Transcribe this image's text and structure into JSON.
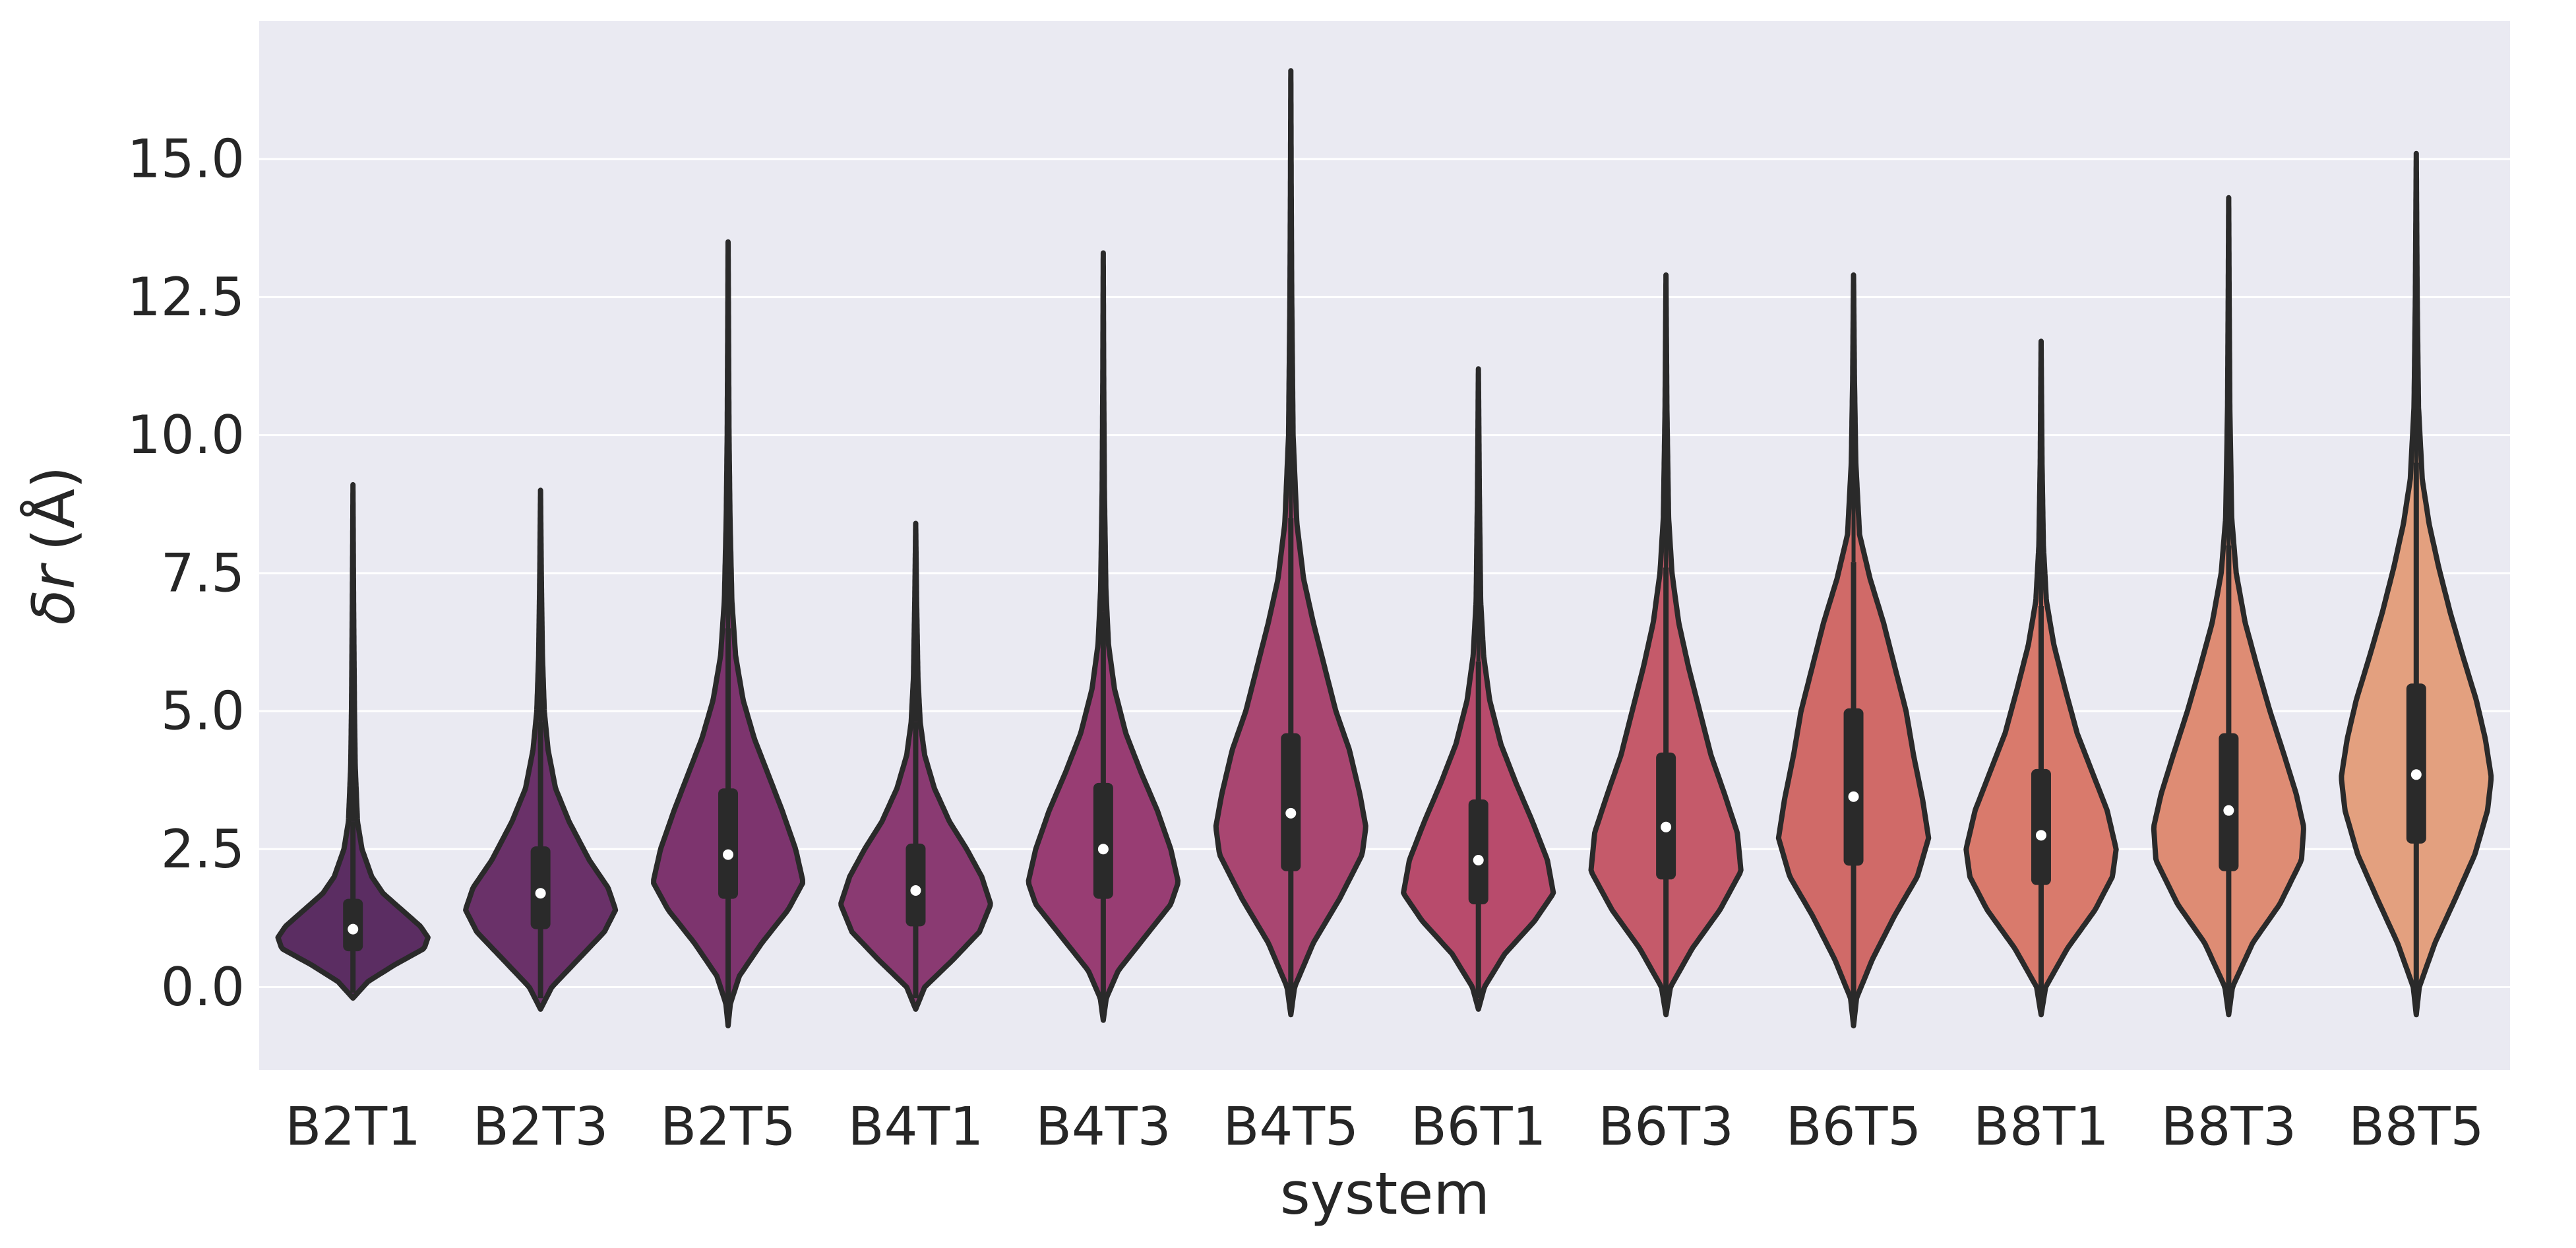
{
  "chart_data": {
    "type": "violin",
    "xlabel": "system",
    "ylabel_greek": "δ",
    "ylabel_var": "r",
    "ylabel_unit": "(Å)",
    "ylim": [
      -1.5,
      17.5
    ],
    "yticks": [
      0.0,
      2.5,
      5.0,
      7.5,
      10.0,
      12.5,
      15.0
    ],
    "ytick_labels": [
      "0.0",
      "2.5",
      "5.0",
      "7.5",
      "10.0",
      "12.5",
      "15.0"
    ],
    "grid": true,
    "categories": [
      "B2T1",
      "B2T3",
      "B2T5",
      "B4T1",
      "B4T3",
      "B4T5",
      "B6T1",
      "B6T3",
      "B6T5",
      "B8T1",
      "B8T3",
      "B8T5"
    ],
    "colors": [
      "#5b2d62",
      "#6a3169",
      "#7d346e",
      "#8a3a72",
      "#983d73",
      "#a94671",
      "#b84b6c",
      "#c55a6a",
      "#d06a68",
      "#d97a6c",
      "#de8c74",
      "#e3a07f"
    ],
    "violins": [
      {
        "min": -0.2,
        "max": 9.1,
        "q1": 0.65,
        "median": 1.05,
        "q3": 1.6,
        "whisker_low": -0.1,
        "whisker_high": 3.0,
        "density": [
          [
            -0.2,
            0.0
          ],
          [
            0.1,
            0.2
          ],
          [
            0.4,
            0.55
          ],
          [
            0.7,
            0.95
          ],
          [
            0.9,
            1.0
          ],
          [
            1.1,
            0.9
          ],
          [
            1.4,
            0.65
          ],
          [
            1.7,
            0.4
          ],
          [
            2.0,
            0.25
          ],
          [
            2.5,
            0.12
          ],
          [
            3.0,
            0.06
          ],
          [
            4.0,
            0.03
          ],
          [
            5.0,
            0.02
          ],
          [
            7.0,
            0.008
          ],
          [
            9.1,
            0.0
          ]
        ]
      },
      {
        "min": -0.4,
        "max": 9.0,
        "q1": 1.05,
        "median": 1.7,
        "q3": 2.55,
        "whisker_low": -0.2,
        "whisker_high": 4.8,
        "density": [
          [
            -0.4,
            0.0
          ],
          [
            0.0,
            0.15
          ],
          [
            0.5,
            0.5
          ],
          [
            1.0,
            0.85
          ],
          [
            1.4,
            1.0
          ],
          [
            1.8,
            0.9
          ],
          [
            2.3,
            0.65
          ],
          [
            3.0,
            0.38
          ],
          [
            3.6,
            0.2
          ],
          [
            4.3,
            0.1
          ],
          [
            5.0,
            0.05
          ],
          [
            6.0,
            0.025
          ],
          [
            7.5,
            0.01
          ],
          [
            9.0,
            0.0
          ]
        ]
      },
      {
        "min": -0.7,
        "max": 13.5,
        "q1": 1.6,
        "median": 2.4,
        "q3": 3.6,
        "whisker_low": -0.3,
        "whisker_high": 6.5,
        "density": [
          [
            -0.7,
            0.0
          ],
          [
            -0.3,
            0.03
          ],
          [
            0.2,
            0.15
          ],
          [
            0.8,
            0.45
          ],
          [
            1.4,
            0.8
          ],
          [
            1.9,
            1.0
          ],
          [
            2.5,
            0.9
          ],
          [
            3.2,
            0.72
          ],
          [
            3.8,
            0.55
          ],
          [
            4.5,
            0.35
          ],
          [
            5.2,
            0.2
          ],
          [
            6.0,
            0.1
          ],
          [
            7.0,
            0.05
          ],
          [
            8.5,
            0.025
          ],
          [
            10.0,
            0.012
          ],
          [
            12.0,
            0.005
          ],
          [
            13.5,
            0.0
          ]
        ]
      },
      {
        "min": -0.4,
        "max": 8.4,
        "q1": 1.1,
        "median": 1.75,
        "q3": 2.6,
        "whisker_low": -0.2,
        "whisker_high": 4.8,
        "density": [
          [
            -0.4,
            0.0
          ],
          [
            0.0,
            0.12
          ],
          [
            0.5,
            0.5
          ],
          [
            1.0,
            0.85
          ],
          [
            1.5,
            1.0
          ],
          [
            2.0,
            0.88
          ],
          [
            2.5,
            0.68
          ],
          [
            3.0,
            0.45
          ],
          [
            3.6,
            0.25
          ],
          [
            4.2,
            0.12
          ],
          [
            4.8,
            0.06
          ],
          [
            5.6,
            0.03
          ],
          [
            7.0,
            0.012
          ],
          [
            8.4,
            0.0
          ]
        ]
      },
      {
        "min": -0.6,
        "max": 13.3,
        "q1": 1.6,
        "median": 2.5,
        "q3": 3.7,
        "whisker_low": -0.3,
        "whisker_high": 6.8,
        "density": [
          [
            -0.6,
            0.0
          ],
          [
            -0.2,
            0.04
          ],
          [
            0.3,
            0.2
          ],
          [
            0.9,
            0.55
          ],
          [
            1.5,
            0.9
          ],
          [
            1.9,
            1.0
          ],
          [
            2.5,
            0.9
          ],
          [
            3.2,
            0.72
          ],
          [
            3.9,
            0.5
          ],
          [
            4.6,
            0.3
          ],
          [
            5.4,
            0.15
          ],
          [
            6.2,
            0.07
          ],
          [
            7.2,
            0.035
          ],
          [
            9.0,
            0.015
          ],
          [
            11.0,
            0.006
          ],
          [
            13.3,
            0.0
          ]
        ]
      },
      {
        "min": -0.5,
        "max": 16.6,
        "q1": 2.1,
        "median": 3.15,
        "q3": 4.6,
        "whisker_low": -0.2,
        "whisker_high": 8.5,
        "density": [
          [
            -0.5,
            0.0
          ],
          [
            0.0,
            0.05
          ],
          [
            0.8,
            0.3
          ],
          [
            1.6,
            0.65
          ],
          [
            2.4,
            0.95
          ],
          [
            2.9,
            1.0
          ],
          [
            3.5,
            0.92
          ],
          [
            4.3,
            0.78
          ],
          [
            5.0,
            0.6
          ],
          [
            5.8,
            0.45
          ],
          [
            6.6,
            0.3
          ],
          [
            7.4,
            0.17
          ],
          [
            8.4,
            0.08
          ],
          [
            10.0,
            0.03
          ],
          [
            12.5,
            0.012
          ],
          [
            14.5,
            0.005
          ],
          [
            16.6,
            0.0
          ]
        ]
      },
      {
        "min": -0.4,
        "max": 11.2,
        "q1": 1.5,
        "median": 2.3,
        "q3": 3.4,
        "whisker_low": -0.2,
        "whisker_high": 5.9,
        "density": [
          [
            -0.4,
            0.0
          ],
          [
            0.0,
            0.08
          ],
          [
            0.6,
            0.35
          ],
          [
            1.2,
            0.75
          ],
          [
            1.7,
            1.0
          ],
          [
            2.3,
            0.92
          ],
          [
            3.0,
            0.72
          ],
          [
            3.7,
            0.5
          ],
          [
            4.4,
            0.3
          ],
          [
            5.2,
            0.15
          ],
          [
            6.0,
            0.07
          ],
          [
            7.0,
            0.03
          ],
          [
            9.0,
            0.012
          ],
          [
            11.2,
            0.0
          ]
        ]
      },
      {
        "min": -0.5,
        "max": 12.9,
        "q1": 1.95,
        "median": 2.9,
        "q3": 4.25,
        "whisker_low": -0.2,
        "whisker_high": 7.6,
        "density": [
          [
            -0.5,
            0.0
          ],
          [
            0.0,
            0.06
          ],
          [
            0.7,
            0.35
          ],
          [
            1.4,
            0.72
          ],
          [
            2.1,
            1.0
          ],
          [
            2.8,
            0.95
          ],
          [
            3.5,
            0.78
          ],
          [
            4.2,
            0.6
          ],
          [
            5.0,
            0.45
          ],
          [
            5.8,
            0.3
          ],
          [
            6.6,
            0.17
          ],
          [
            7.5,
            0.08
          ],
          [
            8.5,
            0.035
          ],
          [
            10.5,
            0.012
          ],
          [
            12.9,
            0.0
          ]
        ]
      },
      {
        "min": -0.7,
        "max": 12.9,
        "q1": 2.2,
        "median": 3.45,
        "q3": 5.05,
        "whisker_low": -0.3,
        "whisker_high": 7.7,
        "density": [
          [
            -0.7,
            0.0
          ],
          [
            -0.2,
            0.04
          ],
          [
            0.5,
            0.25
          ],
          [
            1.3,
            0.55
          ],
          [
            2.0,
            0.85
          ],
          [
            2.7,
            1.0
          ],
          [
            3.4,
            0.92
          ],
          [
            4.2,
            0.8
          ],
          [
            5.0,
            0.7
          ],
          [
            5.8,
            0.55
          ],
          [
            6.6,
            0.4
          ],
          [
            7.4,
            0.22
          ],
          [
            8.2,
            0.08
          ],
          [
            9.5,
            0.03
          ],
          [
            11.0,
            0.012
          ],
          [
            12.9,
            0.0
          ]
        ]
      },
      {
        "min": -0.5,
        "max": 11.7,
        "q1": 1.85,
        "median": 2.75,
        "q3": 3.95,
        "whisker_low": -0.2,
        "whisker_high": 6.9,
        "density": [
          [
            -0.5,
            0.0
          ],
          [
            0.0,
            0.06
          ],
          [
            0.7,
            0.35
          ],
          [
            1.4,
            0.72
          ],
          [
            2.0,
            0.95
          ],
          [
            2.5,
            1.0
          ],
          [
            3.2,
            0.88
          ],
          [
            3.9,
            0.68
          ],
          [
            4.6,
            0.48
          ],
          [
            5.4,
            0.32
          ],
          [
            6.2,
            0.17
          ],
          [
            7.0,
            0.07
          ],
          [
            8.0,
            0.03
          ],
          [
            9.5,
            0.012
          ],
          [
            11.7,
            0.0
          ]
        ]
      },
      {
        "min": -0.5,
        "max": 14.3,
        "q1": 2.1,
        "median": 3.2,
        "q3": 4.6,
        "whisker_low": -0.2,
        "whisker_high": 8.0,
        "density": [
          [
            -0.5,
            0.0
          ],
          [
            0.0,
            0.05
          ],
          [
            0.8,
            0.32
          ],
          [
            1.5,
            0.68
          ],
          [
            2.3,
            0.97
          ],
          [
            2.9,
            1.0
          ],
          [
            3.5,
            0.9
          ],
          [
            4.2,
            0.74
          ],
          [
            5.0,
            0.55
          ],
          [
            5.8,
            0.38
          ],
          [
            6.6,
            0.22
          ],
          [
            7.5,
            0.1
          ],
          [
            8.5,
            0.04
          ],
          [
            10.5,
            0.015
          ],
          [
            12.5,
            0.006
          ],
          [
            14.3,
            0.0
          ]
        ]
      },
      {
        "min": -0.5,
        "max": 15.1,
        "q1": 2.6,
        "median": 3.85,
        "q3": 5.5,
        "whisker_low": -0.1,
        "whisker_high": 9.5,
        "density": [
          [
            -0.5,
            0.0
          ],
          [
            0.0,
            0.04
          ],
          [
            0.8,
            0.25
          ],
          [
            1.6,
            0.52
          ],
          [
            2.4,
            0.78
          ],
          [
            3.2,
            0.95
          ],
          [
            3.8,
            1.0
          ],
          [
            4.5,
            0.92
          ],
          [
            5.2,
            0.8
          ],
          [
            6.0,
            0.62
          ],
          [
            6.8,
            0.45
          ],
          [
            7.6,
            0.3
          ],
          [
            8.4,
            0.17
          ],
          [
            9.2,
            0.08
          ],
          [
            10.5,
            0.03
          ],
          [
            12.5,
            0.012
          ],
          [
            15.1,
            0.0
          ]
        ]
      }
    ]
  }
}
